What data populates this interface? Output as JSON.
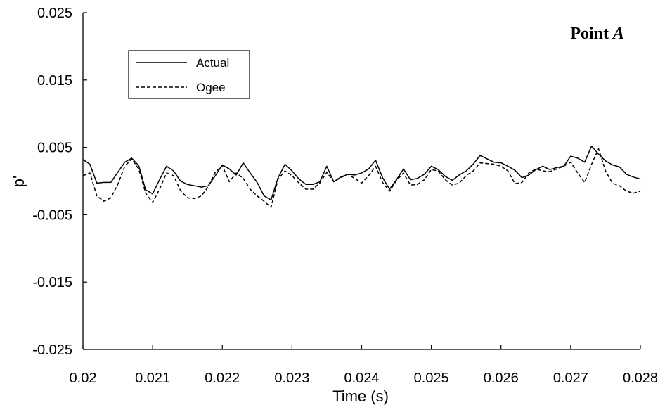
{
  "chart_data": {
    "type": "line",
    "xlabel": "Time (s)",
    "ylabel": "p'",
    "xlim": [
      0.02,
      0.028
    ],
    "ylim": [
      -0.025,
      0.025
    ],
    "xticks": [
      0.02,
      0.021,
      0.022,
      0.023,
      0.024,
      0.025,
      0.026,
      0.027,
      0.028
    ],
    "xtick_labels": [
      "0.02",
      "0.021",
      "0.022",
      "0.023",
      "0.024",
      "0.025",
      "0.026",
      "0.027",
      "0.028"
    ],
    "yticks": [
      0.025,
      0.015,
      0.005,
      -0.005,
      -0.015,
      -0.025
    ],
    "ytick_labels": [
      "0.025",
      "0.015",
      "0.005",
      "-0.005",
      "-0.015",
      "-0.025"
    ],
    "annotation": {
      "prefix": "Point ",
      "italic": "A"
    },
    "legend_position": "upper-left",
    "grid": false,
    "series": [
      {
        "name": "Actual",
        "style": "solid",
        "color": "#000000",
        "x": [
          0.02,
          0.0201,
          0.0202,
          0.0203,
          0.0204,
          0.0205,
          0.0206,
          0.0207,
          0.0208,
          0.0209,
          0.021,
          0.0211,
          0.0212,
          0.0213,
          0.0214,
          0.0215,
          0.0216,
          0.0217,
          0.0218,
          0.0219,
          0.022,
          0.0221,
          0.0222,
          0.0223,
          0.0224,
          0.0225,
          0.0226,
          0.0227,
          0.0228,
          0.0229,
          0.023,
          0.0231,
          0.0232,
          0.0233,
          0.0234,
          0.0235,
          0.0236,
          0.0237,
          0.0238,
          0.0239,
          0.024,
          0.0241,
          0.0242,
          0.0243,
          0.0244,
          0.0245,
          0.0246,
          0.0247,
          0.0248,
          0.0249,
          0.025,
          0.0251,
          0.0252,
          0.0253,
          0.0254,
          0.0255,
          0.0256,
          0.0257,
          0.0258,
          0.0259,
          0.026,
          0.0261,
          0.0262,
          0.0263,
          0.0264,
          0.0265,
          0.0266,
          0.0267,
          0.0268,
          0.0269,
          0.027,
          0.0271,
          0.0272,
          0.0273,
          0.0274,
          0.0275,
          0.0276,
          0.0277,
          0.0278,
          0.0279,
          0.028
        ],
        "values": [
          0.0032,
          0.0025,
          -0.0003,
          -0.0002,
          -0.0002,
          0.0013,
          0.0028,
          0.0034,
          0.0023,
          -0.0013,
          -0.0019,
          0.0002,
          0.0022,
          0.0015,
          0.0,
          -0.0005,
          -0.0007,
          -0.0009,
          -0.0007,
          0.0008,
          0.0024,
          0.0018,
          0.0009,
          0.0027,
          0.0012,
          -0.0002,
          -0.0022,
          -0.0028,
          0.0005,
          0.0025,
          0.0015,
          0.0003,
          -0.0005,
          -0.0005,
          -0.0001,
          0.0022,
          -0.0001,
          0.0006,
          0.001,
          0.0009,
          0.0012,
          0.0018,
          0.0031,
          0.0005,
          -0.0012,
          0.0002,
          0.0018,
          0.0002,
          0.0004,
          0.001,
          0.0022,
          0.0017,
          0.0007,
          0.0001,
          0.0009,
          0.0015,
          0.0025,
          0.0038,
          0.0033,
          0.0028,
          0.0027,
          0.0022,
          0.0016,
          0.0005,
          0.0009,
          0.0017,
          0.0022,
          0.0017,
          0.002,
          0.0022,
          0.0037,
          0.0034,
          0.0028,
          0.0052,
          0.004,
          0.003,
          0.0024,
          0.0021,
          0.001,
          0.0006,
          0.0003
        ]
      },
      {
        "name": "Ogee",
        "style": "dashed",
        "color": "#000000",
        "x": [
          0.02,
          0.0201,
          0.0202,
          0.0203,
          0.0204,
          0.0205,
          0.0206,
          0.0207,
          0.0208,
          0.0209,
          0.021,
          0.0211,
          0.0212,
          0.0213,
          0.0214,
          0.0215,
          0.0216,
          0.0217,
          0.0218,
          0.0219,
          0.022,
          0.0221,
          0.0222,
          0.0223,
          0.0224,
          0.0225,
          0.0226,
          0.0227,
          0.0228,
          0.0229,
          0.023,
          0.0231,
          0.0232,
          0.0233,
          0.0234,
          0.0235,
          0.0236,
          0.0237,
          0.0238,
          0.0239,
          0.024,
          0.0241,
          0.0242,
          0.0243,
          0.0244,
          0.0245,
          0.0246,
          0.0247,
          0.0248,
          0.0249,
          0.025,
          0.0251,
          0.0252,
          0.0253,
          0.0254,
          0.0255,
          0.0256,
          0.0257,
          0.0258,
          0.0259,
          0.026,
          0.0261,
          0.0262,
          0.0263,
          0.0264,
          0.0265,
          0.0266,
          0.0267,
          0.0268,
          0.0269,
          0.027,
          0.0271,
          0.0272,
          0.0273,
          0.0274,
          0.0275,
          0.0276,
          0.0277,
          0.0278,
          0.0279,
          0.028
        ],
        "values": [
          0.0008,
          0.0012,
          -0.0022,
          -0.003,
          -0.0025,
          -0.0005,
          0.0022,
          0.0033,
          0.0018,
          -0.0018,
          -0.0032,
          -0.0012,
          0.0012,
          0.0008,
          -0.0014,
          -0.0025,
          -0.0026,
          -0.0022,
          -0.0008,
          0.0013,
          0.0023,
          -0.0001,
          0.0012,
          0.0004,
          -0.0012,
          -0.0022,
          -0.003,
          -0.0039,
          0.0003,
          0.0015,
          0.0008,
          -0.0003,
          -0.0012,
          -0.0012,
          -0.0003,
          0.0013,
          -0.0001,
          0.0005,
          0.001,
          0.0004,
          -0.0003,
          0.0008,
          0.0022,
          -0.0002,
          -0.0015,
          0.0001,
          0.0012,
          -0.0006,
          -0.0005,
          0.0002,
          0.0017,
          0.0015,
          0.0002,
          -0.0006,
          -0.0003,
          0.0008,
          0.0015,
          0.0027,
          0.0026,
          0.0025,
          0.0022,
          0.0015,
          -0.0004,
          -0.0002,
          0.0012,
          0.0018,
          0.0015,
          0.0014,
          0.0018,
          0.0022,
          0.0028,
          0.0012,
          -0.0002,
          0.0025,
          0.0048,
          0.0015,
          -0.0003,
          -0.0007,
          -0.0015,
          -0.0018,
          -0.0015
        ]
      }
    ]
  }
}
